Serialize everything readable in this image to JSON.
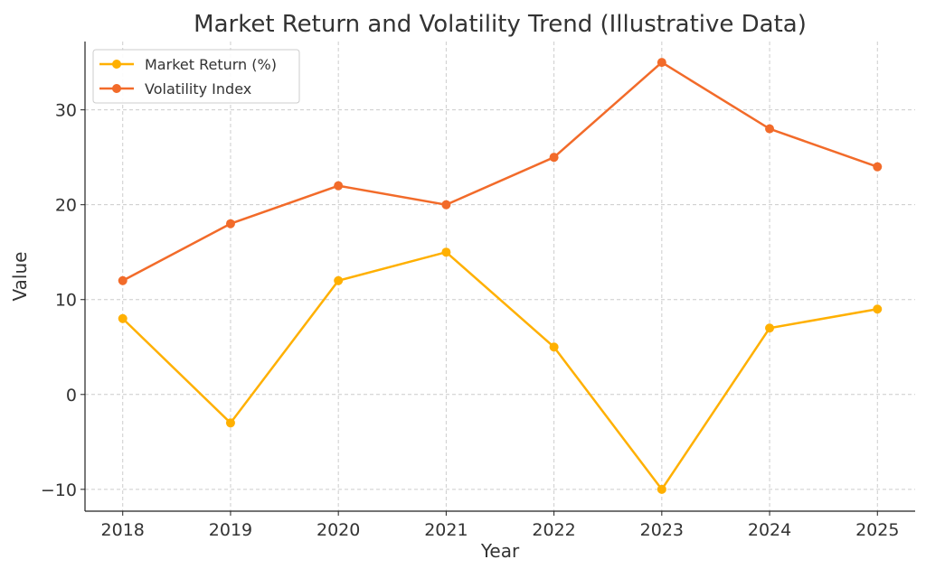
{
  "chart_data": {
    "type": "line",
    "title": "Market Return and Volatility Trend (Illustrative Data)",
    "xlabel": "Year",
    "ylabel": "Value",
    "x": [
      2018,
      2019,
      2020,
      2021,
      2022,
      2023,
      2024,
      2025
    ],
    "xticks": [
      "2018",
      "2019",
      "2020",
      "2021",
      "2022",
      "2023",
      "2024",
      "2025"
    ],
    "yticks": [
      -10,
      0,
      10,
      20,
      30
    ],
    "ytick_labels": [
      "−10",
      "0",
      "10",
      "20",
      "30"
    ],
    "xlim": [
      2017.65,
      2025.35
    ],
    "ylim": [
      -12.3,
      37.2
    ],
    "grid": true,
    "legend_position": "top-left",
    "series": [
      {
        "name": "Market Return (%)",
        "color": "#FFB000",
        "values": [
          8,
          -3,
          12,
          15,
          5,
          -10,
          7,
          9
        ]
      },
      {
        "name": "Volatility Index",
        "color": "#F26B2A",
        "values": [
          12,
          18,
          22,
          20,
          25,
          35,
          28,
          24
        ]
      }
    ]
  }
}
